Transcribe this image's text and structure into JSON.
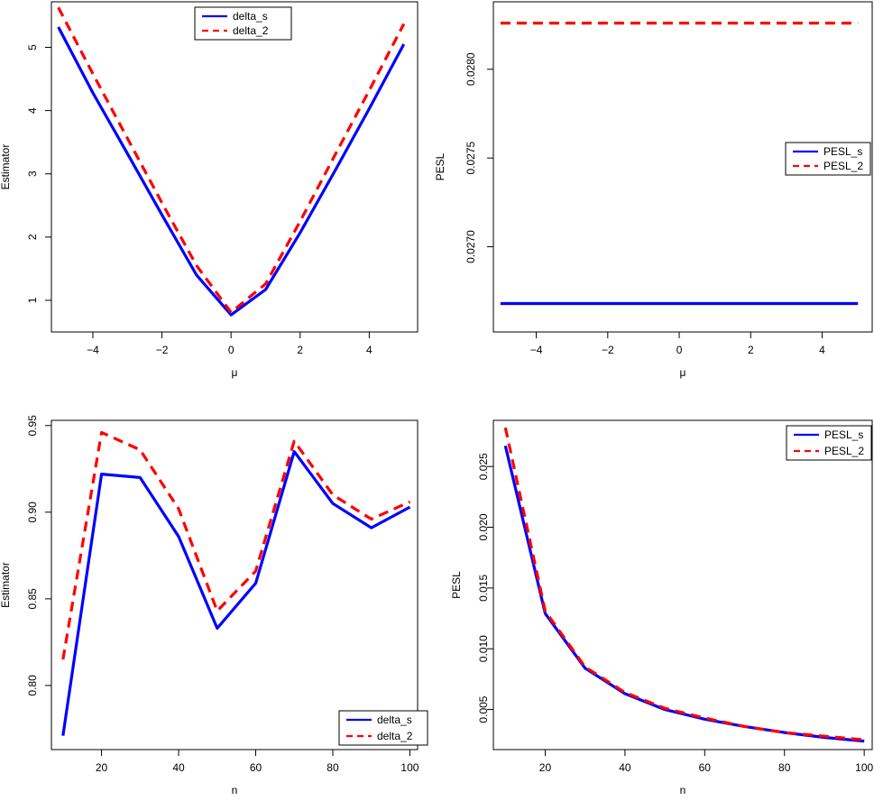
{
  "colors": {
    "series1": "#0000ff",
    "series2": "#ff0000",
    "axis": "#000000"
  },
  "chart_data": [
    {
      "type": "line",
      "xlabel": "μ",
      "ylabel": "Estimator",
      "xlim": [
        -5.2,
        5.4
      ],
      "ylim": [
        0.5,
        5.72
      ],
      "xticks": [
        -4,
        -2,
        0,
        2,
        4
      ],
      "yticks": [
        1,
        2,
        3,
        4,
        5
      ],
      "ytick_labels": [
        "1",
        "2",
        "3",
        "4",
        "5"
      ],
      "legend_position": "top",
      "series": [
        {
          "name": "delta_s",
          "style": "solid",
          "x": [
            -5,
            -4,
            -3,
            -2,
            -1,
            0,
            1,
            2,
            3,
            4,
            5
          ],
          "y": [
            5.32,
            4.28,
            3.32,
            2.35,
            1.4,
            0.77,
            1.17,
            2.07,
            3.04,
            4.03,
            5.05
          ]
        },
        {
          "name": "delta_2",
          "style": "dashed",
          "x": [
            -5,
            -4,
            -3,
            -2,
            -1,
            0,
            1,
            2,
            3,
            4,
            5
          ],
          "y": [
            5.63,
            4.58,
            3.56,
            2.54,
            1.55,
            0.81,
            1.26,
            2.25,
            3.29,
            4.32,
            5.37
          ]
        }
      ]
    },
    {
      "type": "line",
      "xlabel": "μ",
      "ylabel": "PESL",
      "xlim": [
        -5.2,
        5.4
      ],
      "ylim": [
        0.02652,
        0.02838
      ],
      "xticks": [
        -4,
        -2,
        0,
        2,
        4
      ],
      "yticks": [
        0.027,
        0.0275,
        0.028
      ],
      "ytick_labels": [
        "0.0270",
        "0.0275",
        "0.0280"
      ],
      "legend_position": "right",
      "series": [
        {
          "name": "PESL_s",
          "style": "solid",
          "x": [
            -5,
            -4,
            -3,
            -2,
            -1,
            0,
            1,
            2,
            3,
            4,
            5
          ],
          "y": [
            0.02668,
            0.02668,
            0.02668,
            0.02668,
            0.02668,
            0.02668,
            0.02668,
            0.02668,
            0.02668,
            0.02668,
            0.02668
          ]
        },
        {
          "name": "PESL_2",
          "style": "dashed",
          "x": [
            -5,
            -4,
            -3,
            -2,
            -1,
            0,
            1,
            2,
            3,
            4,
            5
          ],
          "y": [
            0.02826,
            0.02826,
            0.02826,
            0.02826,
            0.02826,
            0.02826,
            0.02826,
            0.02826,
            0.02826,
            0.02826,
            0.02826
          ]
        }
      ]
    },
    {
      "type": "line",
      "xlabel": "n",
      "ylabel": "Estimator",
      "xlim": [
        7,
        102
      ],
      "ylim": [
        0.763,
        0.953
      ],
      "xticks": [
        20,
        40,
        60,
        80,
        100
      ],
      "yticks": [
        0.8,
        0.85,
        0.9,
        0.95
      ],
      "ytick_labels": [
        "0.80",
        "0.85",
        "0.90",
        "0.95"
      ],
      "legend_position": "bottom-right",
      "series": [
        {
          "name": "delta_s",
          "style": "solid",
          "x": [
            10,
            20,
            30,
            40,
            50,
            60,
            70,
            80,
            90,
            100
          ],
          "y": [
            0.771,
            0.922,
            0.92,
            0.886,
            0.833,
            0.859,
            0.935,
            0.905,
            0.891,
            0.903
          ]
        },
        {
          "name": "delta_2",
          "style": "dashed",
          "x": [
            10,
            20,
            30,
            40,
            50,
            60,
            70,
            80,
            90,
            100
          ],
          "y": [
            0.815,
            0.946,
            0.936,
            0.902,
            0.843,
            0.866,
            0.941,
            0.91,
            0.896,
            0.906
          ]
        }
      ]
    },
    {
      "type": "line",
      "xlabel": "n",
      "ylabel": "PESL",
      "xlim": [
        7,
        102
      ],
      "ylim": [
        0.0017,
        0.0288
      ],
      "xticks": [
        20,
        40,
        60,
        80,
        100
      ],
      "yticks": [
        0.005,
        0.01,
        0.015,
        0.02,
        0.025
      ],
      "ytick_labels": [
        "0.005",
        "0.010",
        "0.015",
        "0.020",
        "0.025"
      ],
      "legend_position": "top-right",
      "series": [
        {
          "name": "PESL_s",
          "style": "solid",
          "x": [
            10,
            20,
            30,
            40,
            50,
            60,
            70,
            80,
            90,
            100
          ],
          "y": [
            0.0267,
            0.0129,
            0.0084,
            0.0063,
            0.005,
            0.0042,
            0.0036,
            0.0031,
            0.0027,
            0.0024
          ]
        },
        {
          "name": "PESL_2",
          "style": "dashed",
          "x": [
            10,
            20,
            30,
            40,
            50,
            60,
            70,
            80,
            90,
            100
          ],
          "y": [
            0.0282,
            0.0131,
            0.0085,
            0.0064,
            0.0051,
            0.0043,
            0.0036,
            0.0031,
            0.0028,
            0.0025
          ]
        }
      ]
    }
  ]
}
